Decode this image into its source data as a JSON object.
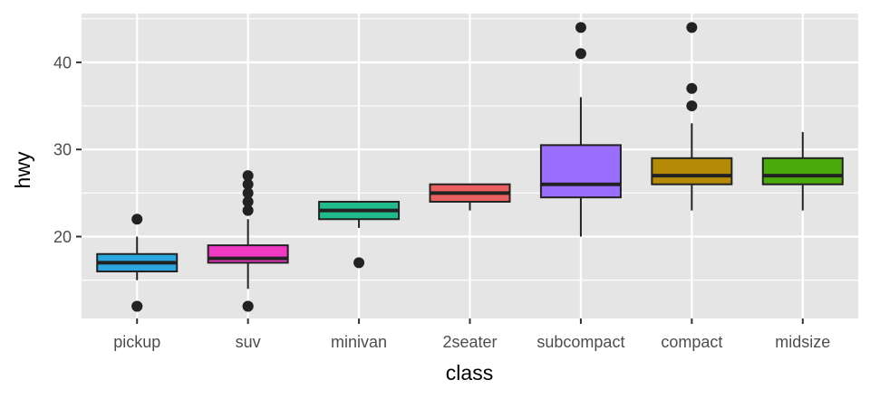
{
  "chart_data": {
    "type": "boxplot",
    "title": "",
    "xlabel": "class",
    "ylabel": "hwy",
    "ylim": [
      10.4,
      45.6
    ],
    "yticks": [
      20,
      30,
      40
    ],
    "grid": true,
    "legend": "none",
    "categories": [
      "pickup",
      "suv",
      "minivan",
      "2seater",
      "subcompact",
      "compact",
      "midsize"
    ],
    "boxes": [
      {
        "category": "pickup",
        "color": "#2aa7e0",
        "whisker_low": 15,
        "q1": 16,
        "median": 17,
        "q3": 18,
        "whisker_high": 20,
        "outliers": [
          12,
          12,
          22
        ]
      },
      {
        "category": "suv",
        "color": "#f13ac4",
        "whisker_low": 14,
        "q1": 17,
        "median": 17.5,
        "q3": 19,
        "whisker_high": 22,
        "outliers": [
          12,
          12,
          23,
          24,
          25,
          26,
          27
        ]
      },
      {
        "category": "minivan",
        "color": "#1fbb8c",
        "whisker_low": 21,
        "q1": 22,
        "median": 23,
        "q3": 24,
        "whisker_high": 24,
        "outliers": [
          17
        ]
      },
      {
        "category": "2seater",
        "color": "#e8605f",
        "whisker_low": 23,
        "q1": 24,
        "median": 25,
        "q3": 26,
        "whisker_high": 26,
        "outliers": []
      },
      {
        "category": "subcompact",
        "color": "#9a6fff",
        "whisker_low": 20,
        "q1": 24.5,
        "median": 26,
        "q3": 30.5,
        "whisker_high": 36,
        "outliers": [
          41,
          44
        ]
      },
      {
        "category": "compact",
        "color": "#b58a06",
        "whisker_low": 23,
        "q1": 26,
        "median": 27,
        "q3": 29,
        "whisker_high": 33,
        "outliers": [
          35,
          37,
          44
        ]
      },
      {
        "category": "midsize",
        "color": "#4aaa0c",
        "whisker_low": 23,
        "q1": 26,
        "median": 27,
        "q3": 29,
        "whisker_high": 32,
        "outliers": []
      }
    ]
  },
  "colors": {
    "panel_background": "#e5e5e5",
    "grid_line": "#ffffff",
    "box_outline": "#222222",
    "outlier": "#222222"
  }
}
